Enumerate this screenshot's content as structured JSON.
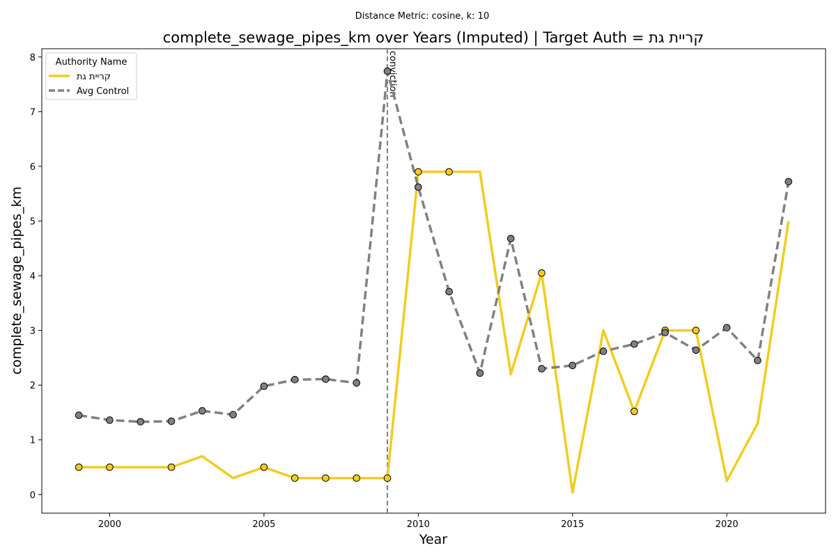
{
  "chart_data": {
    "type": "line",
    "suptitle": "Distance Metric: cosine, k: 10",
    "title": "complete_sewage_pipes_km over Years (Imputed) | Target Auth = קריית גת",
    "xlabel": "Year",
    "ylabel": "complete_sewage_pipes_km",
    "xlim": [
      1997.8,
      2023.2
    ],
    "ylim": [
      -0.34,
      8.15
    ],
    "xticks": [
      2000,
      2005,
      2010,
      2015,
      2020
    ],
    "yticks": [
      0,
      1,
      2,
      3,
      4,
      5,
      6,
      7,
      8
    ],
    "grid": false,
    "legend": {
      "title": "Authority Name",
      "position": "top-left"
    },
    "annotation": {
      "x": 2009,
      "label": "conviction"
    },
    "x": [
      1999,
      2000,
      2001,
      2002,
      2003,
      2004,
      2005,
      2006,
      2007,
      2008,
      2009,
      2010,
      2011,
      2012,
      2013,
      2014,
      2015,
      2016,
      2017,
      2018,
      2019,
      2020,
      2021,
      2022
    ],
    "series": [
      {
        "name": "קריית גת",
        "color": "#f2cc1d",
        "style": "solid",
        "values": [
          0.5,
          0.5,
          0.5,
          0.5,
          0.7,
          0.3,
          0.5,
          0.3,
          0.3,
          0.3,
          0.3,
          5.9,
          5.9,
          5.9,
          2.2,
          4.05,
          0.04,
          3.0,
          1.52,
          3.0,
          3.0,
          0.25,
          1.3,
          5.0
        ],
        "markers": [
          true,
          true,
          false,
          true,
          false,
          false,
          true,
          true,
          true,
          true,
          true,
          true,
          true,
          false,
          false,
          true,
          false,
          false,
          true,
          true,
          true,
          false,
          false,
          false
        ]
      },
      {
        "name": "Avg Control",
        "color": "#808080",
        "style": "dashed",
        "values": [
          1.45,
          1.36,
          1.33,
          1.34,
          1.53,
          1.46,
          1.98,
          2.1,
          2.11,
          2.04,
          7.74,
          5.62,
          3.71,
          2.22,
          4.68,
          2.3,
          2.36,
          2.62,
          2.75,
          2.96,
          2.64,
          3.05,
          2.45,
          5.72
        ],
        "markers": [
          true,
          true,
          true,
          true,
          true,
          true,
          true,
          true,
          true,
          true,
          true,
          true,
          true,
          true,
          true,
          true,
          true,
          true,
          true,
          true,
          true,
          true,
          true,
          true
        ]
      }
    ]
  }
}
